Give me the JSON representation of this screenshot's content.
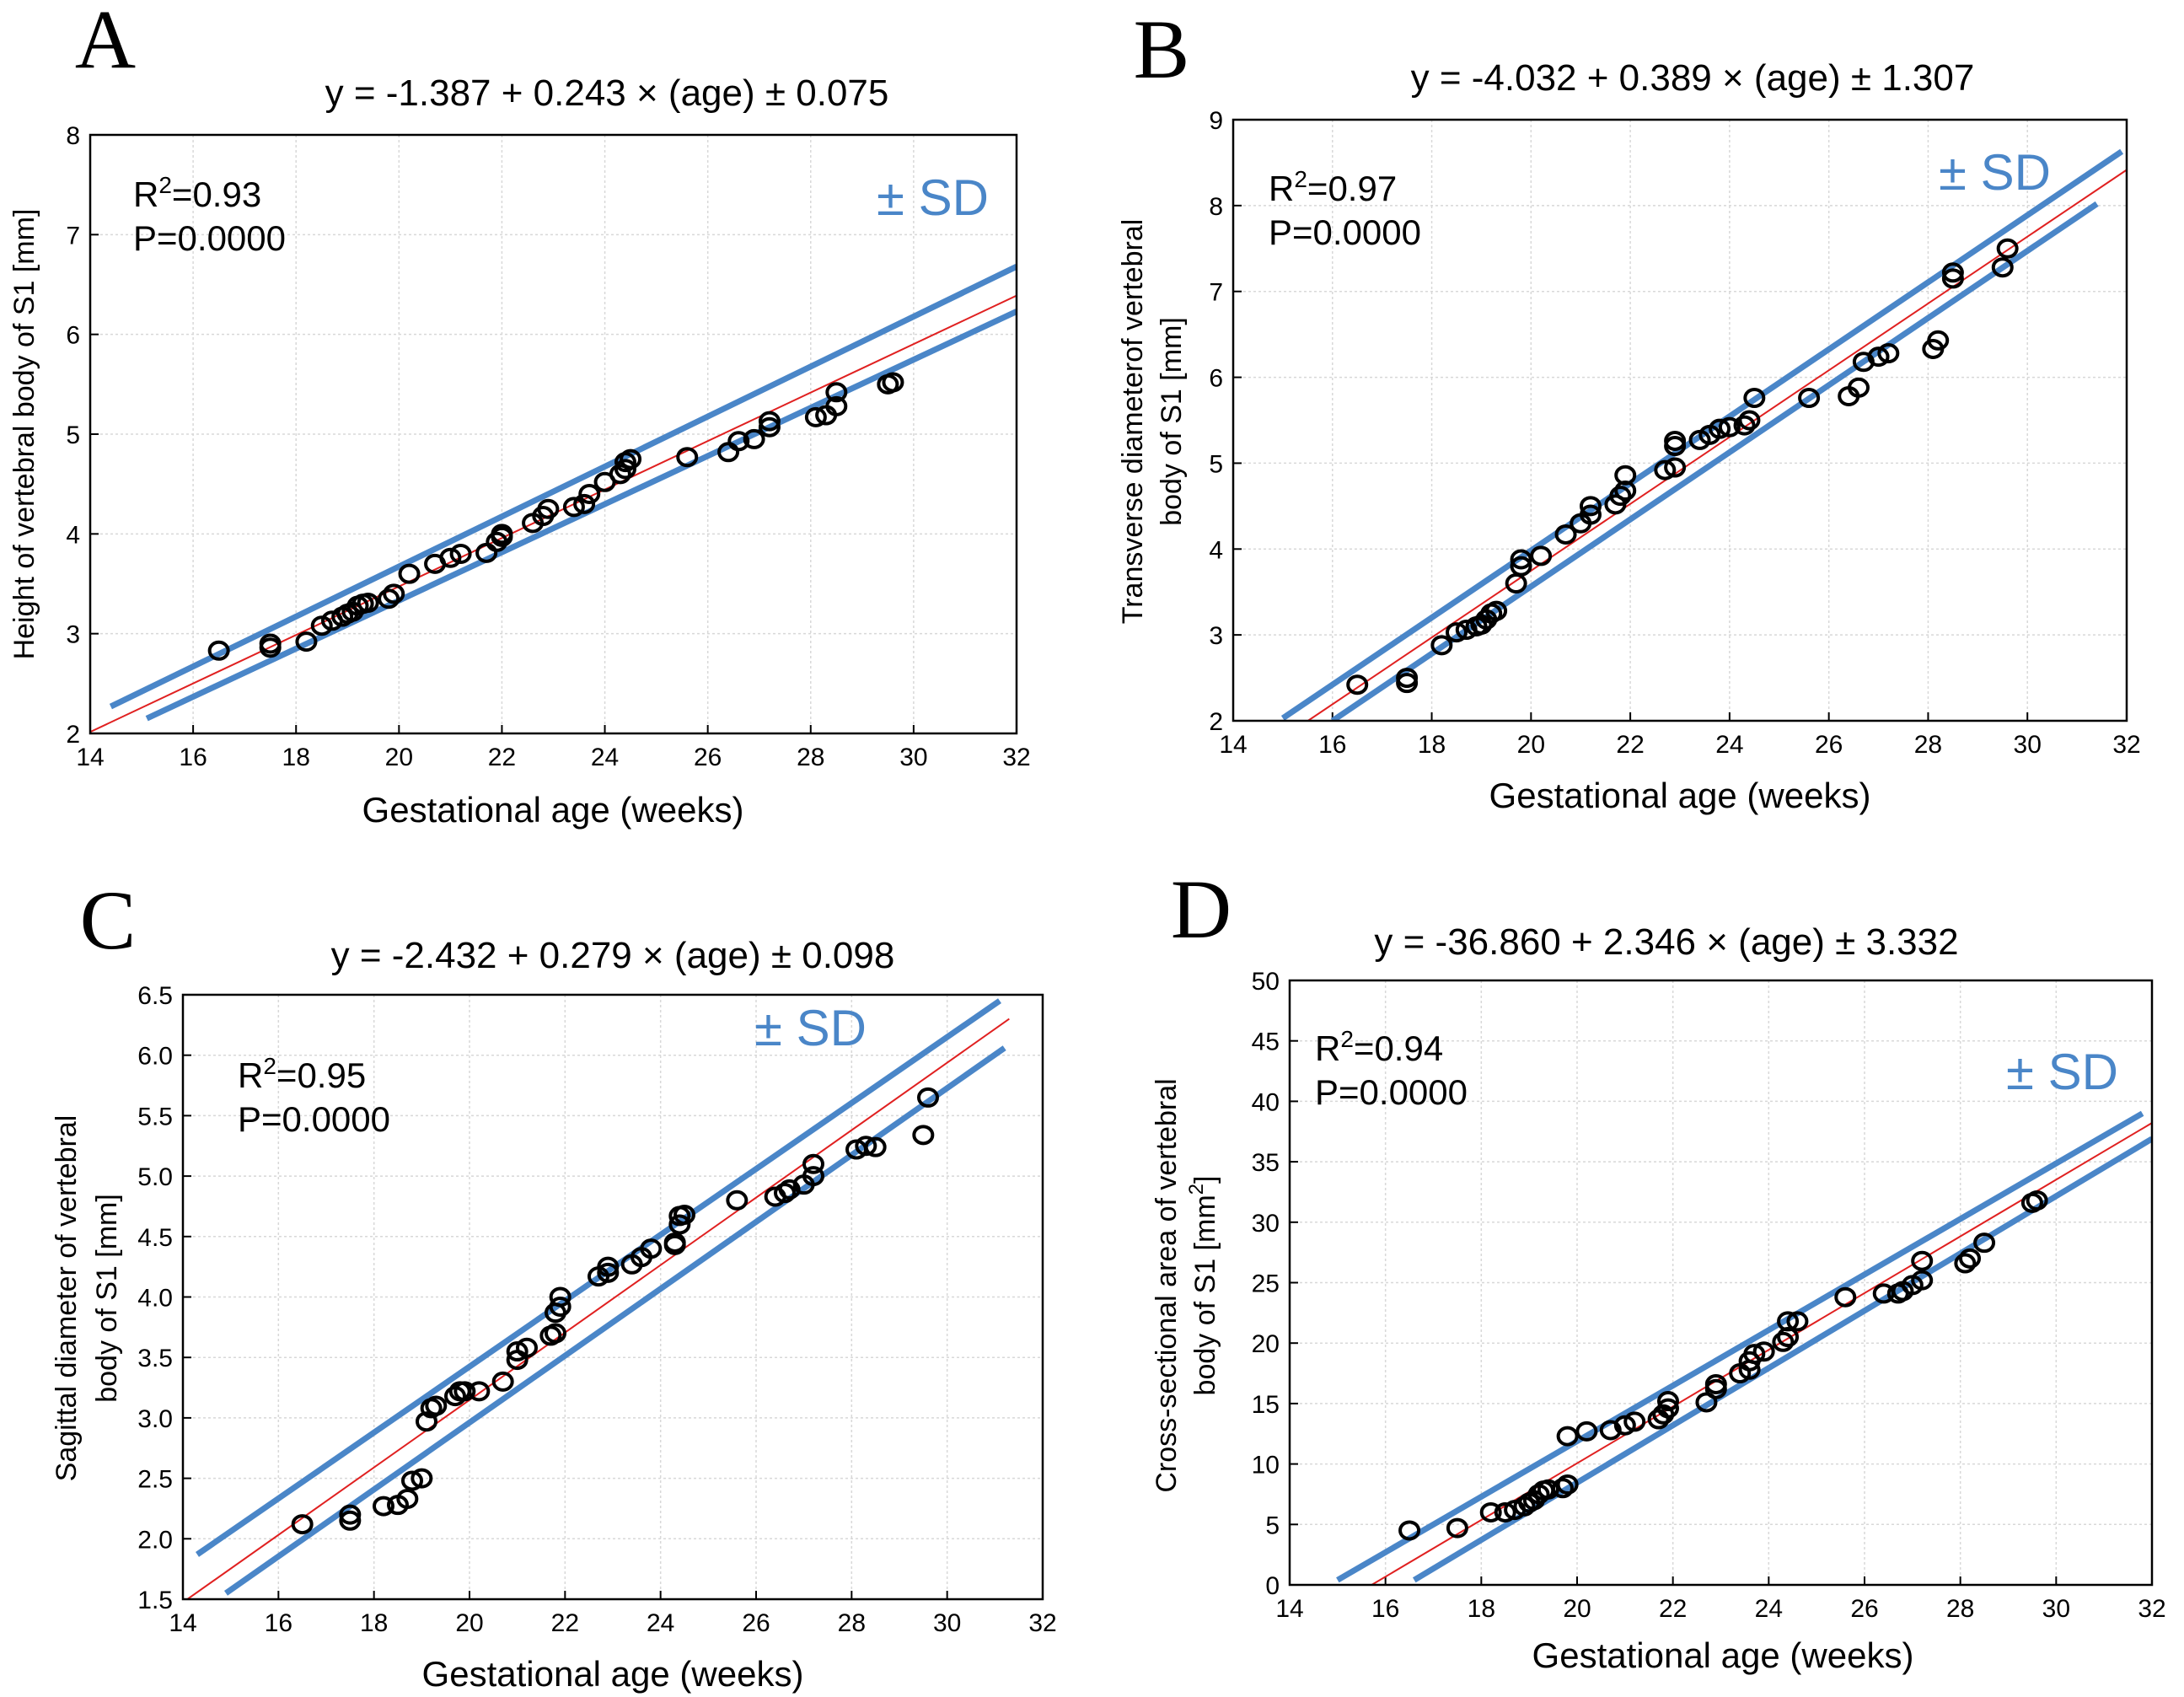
{
  "chart_data": [
    {
      "id": "A",
      "type": "scatter",
      "letter": "A",
      "title": "y = -1.387 + 0.243 × (age) ± 0.075",
      "r2_label": "R",
      "r2_value": "=0.93",
      "p_label": "P=0.0000",
      "sd_label": "± SD",
      "xlabel": "Gestational age (weeks)",
      "ylabel_lines": [
        "Height of vertebral body of S1 [mm]"
      ],
      "xlim": [
        14,
        32
      ],
      "ylim": [
        2,
        8
      ],
      "xticks": [
        14,
        16,
        18,
        20,
        22,
        24,
        26,
        28,
        30,
        32
      ],
      "yticks": [
        2,
        3,
        4,
        5,
        6,
        7,
        8
      ],
      "ytick_labels": [
        "2",
        "3",
        "4",
        "5",
        "6",
        "7",
        "8"
      ],
      "fit": {
        "intercept": -1.387,
        "slope": 0.243,
        "x_range": [
          14,
          32
        ]
      },
      "upper_band": {
        "p1": [
          14.4,
          2.27
        ],
        "p2": [
          32,
          6.68
        ]
      },
      "lower_band": {
        "p1": [
          15.1,
          2.15
        ],
        "p2": [
          32,
          6.23
        ]
      },
      "points": [
        [
          16.5,
          2.83
        ],
        [
          17.5,
          2.86
        ],
        [
          17.5,
          2.9
        ],
        [
          18.2,
          2.92
        ],
        [
          18.5,
          3.08
        ],
        [
          18.7,
          3.13
        ],
        [
          18.9,
          3.17
        ],
        [
          19.0,
          3.2
        ],
        [
          19.1,
          3.22
        ],
        [
          19.2,
          3.28
        ],
        [
          19.3,
          3.3
        ],
        [
          19.4,
          3.31
        ],
        [
          19.8,
          3.35
        ],
        [
          19.9,
          3.4
        ],
        [
          20.2,
          3.6
        ],
        [
          20.7,
          3.7
        ],
        [
          21.0,
          3.76
        ],
        [
          21.2,
          3.8
        ],
        [
          21.7,
          3.81
        ],
        [
          21.9,
          3.92
        ],
        [
          22.0,
          3.97
        ],
        [
          22.0,
          4.0
        ],
        [
          22.6,
          4.11
        ],
        [
          22.8,
          4.18
        ],
        [
          22.9,
          4.25
        ],
        [
          23.4,
          4.27
        ],
        [
          23.6,
          4.3
        ],
        [
          23.7,
          4.4
        ],
        [
          24.0,
          4.52
        ],
        [
          24.3,
          4.6
        ],
        [
          24.4,
          4.65
        ],
        [
          24.4,
          4.72
        ],
        [
          24.5,
          4.75
        ],
        [
          25.6,
          4.77
        ],
        [
          26.4,
          4.82
        ],
        [
          26.6,
          4.93
        ],
        [
          26.9,
          4.95
        ],
        [
          27.2,
          5.07
        ],
        [
          27.2,
          5.13
        ],
        [
          28.1,
          5.17
        ],
        [
          28.3,
          5.19
        ],
        [
          28.5,
          5.28
        ],
        [
          28.5,
          5.42
        ],
        [
          29.5,
          5.5
        ],
        [
          29.6,
          5.52
        ]
      ]
    },
    {
      "id": "B",
      "type": "scatter",
      "letter": "B",
      "title": "y = -4.032 + 0.389 × (age) ± 1.307",
      "r2_label": "R",
      "r2_value": "=0.97",
      "p_label": "P=0.0000",
      "sd_label": "± SD",
      "xlabel": "Gestational age (weeks)",
      "ylabel_lines": [
        "Transverse diameterof vertebral",
        "body of S1 [mm]"
      ],
      "xlim": [
        14,
        32
      ],
      "ylim": [
        2,
        9
      ],
      "xticks": [
        14,
        16,
        18,
        20,
        22,
        24,
        26,
        28,
        30,
        32
      ],
      "yticks": [
        2,
        3,
        4,
        5,
        6,
        7,
        8,
        9
      ],
      "ytick_labels": [
        "2",
        "3",
        "4",
        "5",
        "6",
        "7",
        "8",
        "9"
      ],
      "fit": {
        "intercept": -4.032,
        "slope": 0.389,
        "x_range": [
          15.5,
          32
        ]
      },
      "upper_band": {
        "p1": [
          15.0,
          2.03
        ],
        "p2": [
          31.9,
          8.63
        ]
      },
      "lower_band": {
        "p1": [
          16.0,
          2.0
        ],
        "p2": [
          31.4,
          8.02
        ]
      },
      "points": [
        [
          16.5,
          2.42
        ],
        [
          17.5,
          2.44
        ],
        [
          17.5,
          2.5
        ],
        [
          18.2,
          2.88
        ],
        [
          18.5,
          3.03
        ],
        [
          18.7,
          3.06
        ],
        [
          18.9,
          3.1
        ],
        [
          19.0,
          3.12
        ],
        [
          19.1,
          3.18
        ],
        [
          19.2,
          3.25
        ],
        [
          19.3,
          3.28
        ],
        [
          19.7,
          3.6
        ],
        [
          19.8,
          3.8
        ],
        [
          19.8,
          3.88
        ],
        [
          20.2,
          3.92
        ],
        [
          20.7,
          4.17
        ],
        [
          21.0,
          4.3
        ],
        [
          21.2,
          4.4
        ],
        [
          21.2,
          4.5
        ],
        [
          21.7,
          4.52
        ],
        [
          21.8,
          4.62
        ],
        [
          21.9,
          4.68
        ],
        [
          21.9,
          4.86
        ],
        [
          22.7,
          4.92
        ],
        [
          22.9,
          4.95
        ],
        [
          22.9,
          5.2
        ],
        [
          22.9,
          5.26
        ],
        [
          23.4,
          5.27
        ],
        [
          23.6,
          5.33
        ],
        [
          23.8,
          5.4
        ],
        [
          24.0,
          5.42
        ],
        [
          24.3,
          5.44
        ],
        [
          24.4,
          5.5
        ],
        [
          24.5,
          5.76
        ],
        [
          25.6,
          5.76
        ],
        [
          26.4,
          5.78
        ],
        [
          26.6,
          5.88
        ],
        [
          26.7,
          6.18
        ],
        [
          27.0,
          6.24
        ],
        [
          27.2,
          6.28
        ],
        [
          28.1,
          6.33
        ],
        [
          28.2,
          6.43
        ],
        [
          28.5,
          7.15
        ],
        [
          28.5,
          7.22
        ],
        [
          29.5,
          7.28
        ],
        [
          29.6,
          7.5
        ]
      ]
    },
    {
      "id": "C",
      "type": "scatter",
      "letter": "C",
      "title": "y = -2.432 + 0.279 × (age) ± 0.098",
      "r2_label": "R",
      "r2_value": "=0.95",
      "p_label": "P=0.0000",
      "sd_label": "± SD",
      "xlabel": "Gestational age (weeks)",
      "ylabel_lines": [
        "Sagittal diameter of vertebral",
        "body of S1 [mm]"
      ],
      "xlim": [
        14,
        32
      ],
      "ylim": [
        1.5,
        6.5
      ],
      "xticks": [
        14,
        16,
        18,
        20,
        22,
        24,
        26,
        28,
        30,
        32
      ],
      "yticks": [
        1.5,
        2.0,
        2.5,
        3.0,
        3.5,
        4.0,
        4.5,
        5.0,
        5.5,
        6.0,
        6.5
      ],
      "ytick_labels": [
        "1.5",
        "2.0",
        "2.5",
        "3.0",
        "3.5",
        "4.0",
        "4.5",
        "5.0",
        "5.5",
        "6.0",
        "6.5"
      ],
      "fit": {
        "intercept": -2.432,
        "slope": 0.279,
        "x_range": [
          14.1,
          31.3
        ]
      },
      "upper_band": {
        "p1": [
          14.3,
          1.87
        ],
        "p2": [
          31.1,
          6.45
        ]
      },
      "lower_band": {
        "p1": [
          14.9,
          1.55
        ],
        "p2": [
          31.2,
          6.06
        ]
      },
      "points": [
        [
          16.5,
          2.12
        ],
        [
          17.5,
          2.15
        ],
        [
          17.5,
          2.2
        ],
        [
          18.2,
          2.27
        ],
        [
          18.5,
          2.28
        ],
        [
          18.7,
          2.33
        ],
        [
          18.8,
          2.48
        ],
        [
          19.0,
          2.5
        ],
        [
          19.1,
          2.97
        ],
        [
          19.2,
          3.08
        ],
        [
          19.3,
          3.1
        ],
        [
          19.7,
          3.18
        ],
        [
          19.8,
          3.22
        ],
        [
          19.9,
          3.22
        ],
        [
          20.2,
          3.22
        ],
        [
          20.7,
          3.3
        ],
        [
          21.0,
          3.48
        ],
        [
          21.0,
          3.55
        ],
        [
          21.2,
          3.58
        ],
        [
          21.7,
          3.68
        ],
        [
          21.8,
          3.7
        ],
        [
          21.8,
          3.87
        ],
        [
          21.9,
          3.92
        ],
        [
          21.9,
          4.0
        ],
        [
          22.7,
          4.17
        ],
        [
          22.9,
          4.2
        ],
        [
          22.9,
          4.25
        ],
        [
          23.4,
          4.27
        ],
        [
          23.6,
          4.33
        ],
        [
          23.8,
          4.4
        ],
        [
          24.3,
          4.43
        ],
        [
          24.3,
          4.45
        ],
        [
          24.4,
          4.6
        ],
        [
          24.4,
          4.67
        ],
        [
          24.5,
          4.68
        ],
        [
          25.6,
          4.8
        ],
        [
          26.4,
          4.83
        ],
        [
          26.6,
          4.86
        ],
        [
          26.7,
          4.89
        ],
        [
          27.0,
          4.93
        ],
        [
          27.2,
          5.0
        ],
        [
          27.2,
          5.1
        ],
        [
          28.1,
          5.22
        ],
        [
          28.3,
          5.25
        ],
        [
          28.5,
          5.24
        ],
        [
          29.5,
          5.34
        ],
        [
          29.6,
          5.65
        ]
      ]
    },
    {
      "id": "D",
      "type": "scatter",
      "letter": "D",
      "title": "y = -36.860 + 2.346 × (age) ± 3.332",
      "r2_label": "R",
      "r2_value": "=0.94",
      "p_label": "P=0.0000",
      "sd_label": "± SD",
      "xlabel": "Gestational age (weeks)",
      "ylabel_lines": [
        "Cross-sectional area of vertebral",
        "body of S1 [mm"
      ],
      "ylabel_sup": "2",
      "ylabel_tail": "]",
      "xlim": [
        14,
        32
      ],
      "ylim": [
        0,
        50
      ],
      "xticks": [
        14,
        16,
        18,
        20,
        22,
        24,
        26,
        28,
        30,
        32
      ],
      "yticks": [
        0,
        5,
        10,
        15,
        20,
        25,
        30,
        35,
        40,
        45,
        50
      ],
      "ytick_labels": [
        "0",
        "5",
        "10",
        "15",
        "20",
        "25",
        "30",
        "35",
        "40",
        "45",
        "50"
      ],
      "fit": {
        "intercept": -36.86,
        "slope": 2.346,
        "x_range": [
          15.7,
          32
        ]
      },
      "upper_band": {
        "p1": [
          15.0,
          0.4
        ],
        "p2": [
          31.8,
          39.0
        ]
      },
      "lower_band": {
        "p1": [
          16.6,
          0.4
        ],
        "p2": [
          32,
          36.9
        ]
      },
      "points": [
        [
          16.5,
          4.5
        ],
        [
          17.5,
          4.7
        ],
        [
          18.2,
          6.0
        ],
        [
          18.5,
          6.0
        ],
        [
          18.7,
          6.2
        ],
        [
          18.9,
          6.5
        ],
        [
          19.0,
          6.8
        ],
        [
          19.1,
          7.0
        ],
        [
          19.2,
          7.5
        ],
        [
          19.3,
          7.8
        ],
        [
          19.4,
          7.9
        ],
        [
          19.7,
          8.0
        ],
        [
          19.8,
          8.3
        ],
        [
          19.8,
          12.3
        ],
        [
          20.2,
          12.7
        ],
        [
          20.7,
          12.8
        ],
        [
          21.0,
          13.2
        ],
        [
          21.2,
          13.5
        ],
        [
          21.7,
          13.7
        ],
        [
          21.8,
          14.1
        ],
        [
          21.9,
          14.6
        ],
        [
          21.9,
          15.2
        ],
        [
          22.7,
          15.1
        ],
        [
          22.9,
          16.2
        ],
        [
          22.9,
          16.6
        ],
        [
          23.4,
          17.5
        ],
        [
          23.6,
          17.8
        ],
        [
          23.6,
          18.5
        ],
        [
          23.7,
          19.1
        ],
        [
          23.9,
          19.3
        ],
        [
          24.3,
          20.1
        ],
        [
          24.4,
          20.5
        ],
        [
          24.4,
          21.8
        ],
        [
          24.6,
          21.8
        ],
        [
          25.6,
          23.8
        ],
        [
          26.4,
          24.1
        ],
        [
          26.7,
          24.1
        ],
        [
          26.8,
          24.3
        ],
        [
          27.0,
          24.8
        ],
        [
          27.2,
          25.2
        ],
        [
          27.2,
          26.8
        ],
        [
          28.1,
          26.6
        ],
        [
          28.2,
          27.0
        ],
        [
          28.5,
          28.3
        ],
        [
          29.5,
          31.6
        ],
        [
          29.6,
          31.8
        ]
      ]
    }
  ]
}
